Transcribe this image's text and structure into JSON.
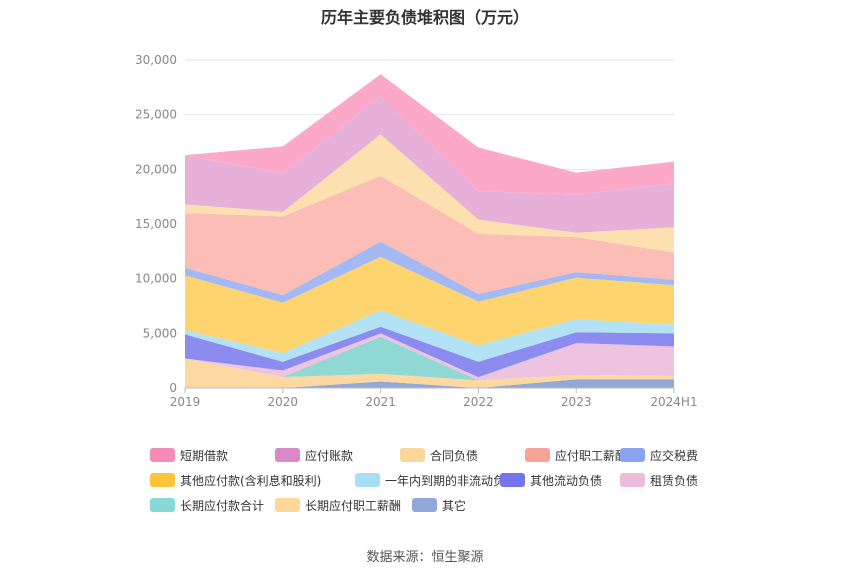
{
  "title": "历年主要负债堆积图（万元）",
  "source": "数据来源：恒生聚源",
  "chart_data": {
    "type": "area",
    "stacked": true,
    "categories": [
      "2019",
      "2020",
      "2021",
      "2022",
      "2023",
      "2024H1"
    ],
    "ylim": [
      0,
      30000
    ],
    "yticks": [
      "0",
      "5,000",
      "10,000",
      "15,000",
      "20,000",
      "25,000",
      "30,000"
    ],
    "grid": true,
    "legend_position": "bottom",
    "series": [
      {
        "name": "其它",
        "color": "#91a8d8",
        "values": [
          0,
          0,
          600,
          0,
          800,
          800
        ]
      },
      {
        "name": "长期应付职工薪酬",
        "color": "#fdd8a0",
        "values": [
          2700,
          1000,
          700,
          700,
          400,
          300
        ]
      },
      {
        "name": "长期应付款合计",
        "color": "#8fd8d4",
        "values": [
          0,
          0,
          3400,
          0,
          0,
          0
        ]
      },
      {
        "name": "租赁负债",
        "color": "#eec3e0",
        "values": [
          0,
          600,
          300,
          300,
          2900,
          2700
        ]
      },
      {
        "name": "其他流动负债",
        "color": "#8c8cf0",
        "values": [
          2200,
          800,
          600,
          1400,
          1000,
          1200
        ]
      },
      {
        "name": "一年内到期的非流动负债",
        "color": "#b2e2f4",
        "values": [
          400,
          800,
          1500,
          1500,
          1200,
          800
        ]
      },
      {
        "name": "其他应付款(含利息和股利)",
        "color": "#fdd46e",
        "values": [
          5000,
          4600,
          4900,
          4000,
          3800,
          3600
        ]
      },
      {
        "name": "应交税费",
        "color": "#a4b8f4",
        "values": [
          700,
          700,
          1400,
          700,
          500,
          500
        ]
      },
      {
        "name": "应付职工薪酬",
        "color": "#fbbdb5",
        "values": [
          5000,
          7200,
          6000,
          5500,
          3200,
          2500
        ]
      },
      {
        "name": "合同负债",
        "color": "#fde0b0",
        "values": [
          800,
          400,
          3800,
          1300,
          400,
          2300
        ]
      },
      {
        "name": "应付账款",
        "color": "#e6b0d8",
        "values": [
          4500,
          3500,
          3500,
          2600,
          3500,
          4000
        ]
      },
      {
        "name": "短期借款",
        "color": "#fca8c8",
        "values": [
          0,
          2500,
          2000,
          4000,
          2000,
          2000
        ]
      }
    ]
  },
  "legend": [
    {
      "name": "短期借款",
      "color": "#f38bb5"
    },
    {
      "name": "应付账款",
      "color": "#d98ac6"
    },
    {
      "name": "合同负债",
      "color": "#fdd69a"
    },
    {
      "name": "应付职工薪酬",
      "color": "#f7a398"
    },
    {
      "name": "应交税费",
      "color": "#8aa4f2"
    },
    {
      "name": "其他应付款(含利息和股利)",
      "color": "#fdc53a"
    },
    {
      "name": "一年内到期的非流动负债",
      "color": "#a8def4"
    },
    {
      "name": "其他流动负债",
      "color": "#7474ee"
    },
    {
      "name": "租赁负债",
      "color": "#ecbcdc"
    },
    {
      "name": "长期应付款合计",
      "color": "#87d8d6"
    },
    {
      "name": "长期应付职工薪酬",
      "color": "#fdd69a"
    },
    {
      "name": "其它",
      "color": "#91a8d8"
    }
  ]
}
